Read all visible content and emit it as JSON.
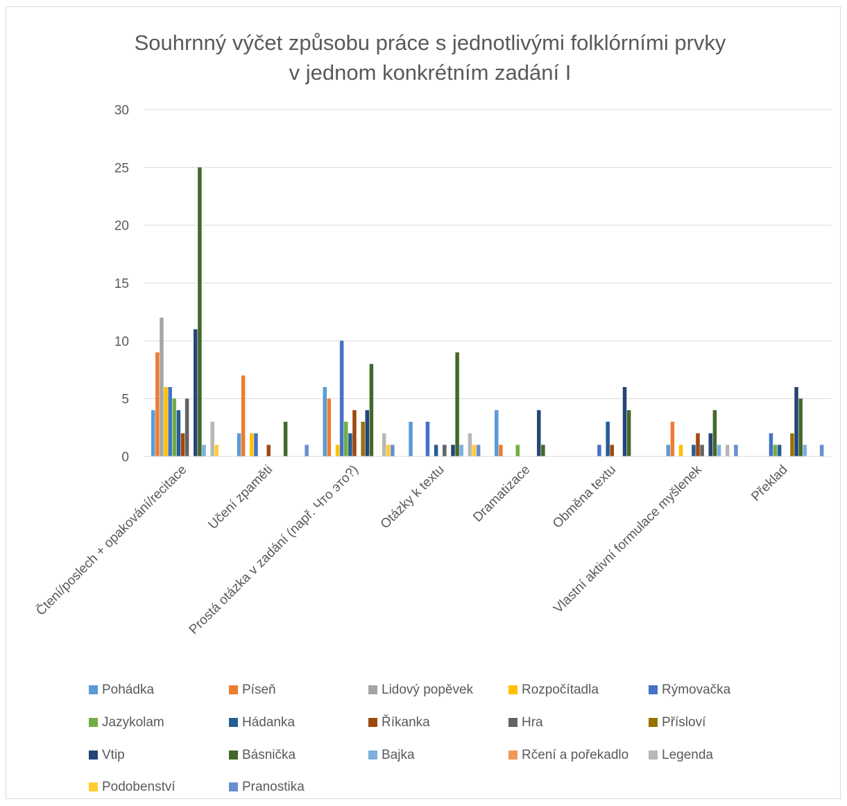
{
  "chart_data": {
    "type": "bar",
    "title": "Souhrnný výčet způsobu práce s jednotlivými folklórními prvky v jednom konkrétním zadání I",
    "title_lines": [
      "Souhrnný výčet způsobu práce s jednotlivými folklórními prvky",
      "v jednom konkrétním zadání I"
    ],
    "xlabel": "",
    "ylabel": "",
    "ylim": [
      0,
      30
    ],
    "yticks": [
      0,
      5,
      10,
      15,
      20,
      25,
      30
    ],
    "grid": true,
    "legend_position": "bottom",
    "categories": [
      "Čtení/poslech + opakování/recitace",
      "Učení zpaměti",
      "Prostá otázka v zadání (např. Что это?)",
      "Otázky k textu",
      "Dramatizace",
      "Obměna textu",
      "Vlastní aktivní formulace myšlenek",
      "Překlad"
    ],
    "series": [
      {
        "name": "Pohádka",
        "color": "#5B9BD5",
        "values": [
          4,
          2,
          6,
          3,
          4,
          0,
          1,
          0
        ]
      },
      {
        "name": "Píseň",
        "color": "#ED7D31",
        "values": [
          9,
          7,
          5,
          0,
          1,
          0,
          3,
          0
        ]
      },
      {
        "name": "Lidový popěvek",
        "color": "#A5A5A5",
        "values": [
          12,
          0,
          0,
          0,
          0,
          0,
          0,
          0
        ]
      },
      {
        "name": "Rozpočítadla",
        "color": "#FFC000",
        "values": [
          6,
          2,
          1,
          0,
          0,
          0,
          1,
          0
        ]
      },
      {
        "name": "Rýmovačka",
        "color": "#4472C4",
        "values": [
          6,
          2,
          10,
          3,
          0,
          1,
          0,
          2
        ]
      },
      {
        "name": "Jazykolam",
        "color": "#70AD47",
        "values": [
          5,
          0,
          3,
          0,
          1,
          0,
          0,
          1
        ]
      },
      {
        "name": "Hádanka",
        "color": "#255E91",
        "values": [
          4,
          0,
          2,
          1,
          0,
          3,
          1,
          1
        ]
      },
      {
        "name": "Říkanka",
        "color": "#9E480E",
        "values": [
          2,
          1,
          4,
          0,
          0,
          1,
          2,
          0
        ]
      },
      {
        "name": "Hra",
        "color": "#636363",
        "values": [
          5,
          0,
          0,
          1,
          0,
          0,
          1,
          0
        ]
      },
      {
        "name": "Přísloví",
        "color": "#997300",
        "values": [
          0,
          0,
          3,
          0,
          0,
          0,
          0,
          2
        ]
      },
      {
        "name": "Vtip",
        "color": "#264478",
        "values": [
          11,
          0,
          4,
          1,
          4,
          6,
          2,
          6
        ]
      },
      {
        "name": "Básnička",
        "color": "#43682B",
        "values": [
          25,
          3,
          8,
          9,
          1,
          4,
          4,
          5
        ]
      },
      {
        "name": "Bajka",
        "color": "#7CAFDD",
        "values": [
          1,
          0,
          0,
          1,
          0,
          0,
          1,
          1
        ]
      },
      {
        "name": "Rčení a pořekadlo",
        "color": "#F1975A",
        "values": [
          0,
          0,
          0,
          0,
          0,
          0,
          0,
          0
        ]
      },
      {
        "name": "Legenda",
        "color": "#B7B7B7",
        "values": [
          3,
          0,
          2,
          2,
          0,
          0,
          1,
          0
        ]
      },
      {
        "name": "Podobenství",
        "color": "#FFCD33",
        "values": [
          1,
          0,
          1,
          1,
          0,
          0,
          0,
          0
        ]
      },
      {
        "name": "Pranostika",
        "color": "#698ED0",
        "values": [
          0,
          1,
          1,
          1,
          0,
          0,
          1,
          1
        ]
      }
    ]
  }
}
